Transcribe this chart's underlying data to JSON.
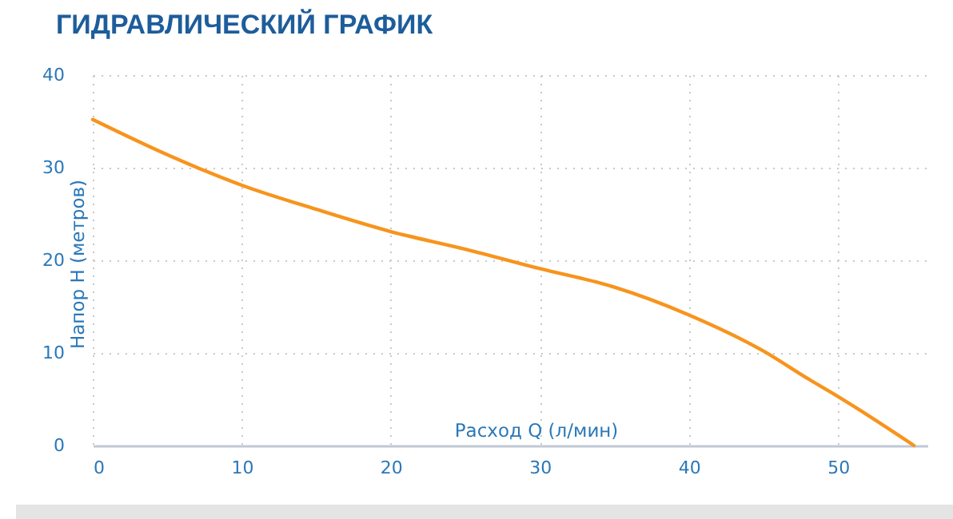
{
  "chart_data": {
    "type": "line",
    "title": "ГИДРАВЛИЧЕСКИЙ ГРАФИК",
    "xlabel": "Расход Q (л/мин)",
    "ylabel": "Напор H (метров)",
    "x": [
      0,
      5,
      10,
      15,
      20,
      25,
      30,
      35,
      40,
      45,
      48,
      50,
      55.1
    ],
    "series": [
      {
        "color": "#f7941d",
        "values": [
          35.2,
          31.4,
          28.1,
          25.5,
          23.1,
          21.2,
          19.1,
          17.1,
          14.1,
          10.2,
          7.2,
          5.3,
          0
        ]
      }
    ],
    "xlim": [
      0,
      56
    ],
    "xticks": [
      0,
      10,
      20,
      30,
      40,
      50
    ],
    "ylim": [
      0,
      40
    ],
    "yticks": [
      0,
      10,
      20,
      30,
      40
    ],
    "grid": true,
    "marker": "none",
    "line_style": "solid"
  }
}
